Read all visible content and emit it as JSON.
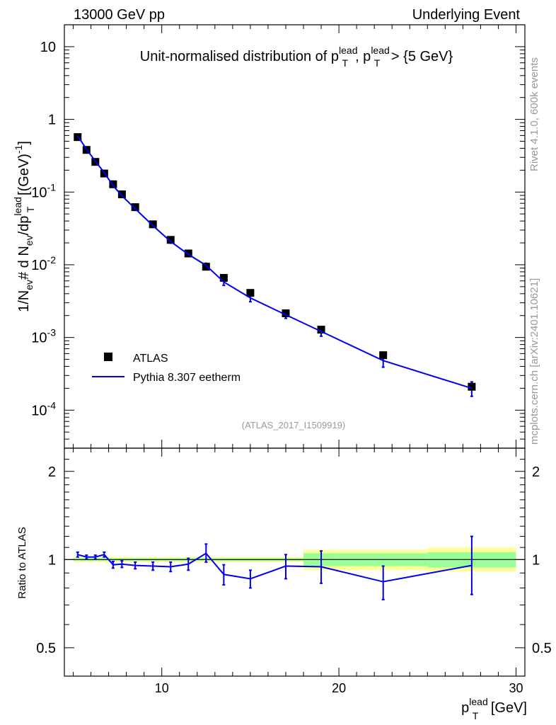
{
  "header": {
    "left": "13000 GeV pp",
    "right": "Underlying Event"
  },
  "side_labels": {
    "rivet": "Rivet 4.1.0,  600k events",
    "mcplots": "mcplots.cern.ch [arXiv:2401.10621]"
  },
  "analysis_id": "(ATLAS_2017_I1509919)",
  "colors": {
    "data": "#000000",
    "mc": "#0000ee",
    "band_inner": "#99ff99",
    "band_outer": "#ffff99",
    "axis": "#000000",
    "id_text": "#999999"
  },
  "chart_data": [
    {
      "type": "line",
      "panel": "main",
      "title": "Unit-normalised distribution of p_T^lead, p_T^lead > {5 GeV}",
      "ylabel": "1/N_ev # d N_ev/dp_T^lead [(GeV)^-1]",
      "xlabel": "p_T^lead [GeV]",
      "xlim": [
        4.5,
        30.5
      ],
      "ylim": [
        3e-05,
        20
      ],
      "yscale": "log",
      "yticks": [
        {
          "value": 0.0001,
          "mant": "10",
          "exp": "-4"
        },
        {
          "value": 0.001,
          "mant": "10",
          "exp": "-3"
        },
        {
          "value": 0.01,
          "mant": "10",
          "exp": "-2"
        },
        {
          "value": 0.1,
          "mant": "10",
          "exp": "-1"
        },
        {
          "value": 1,
          "mant": "1",
          "exp": ""
        },
        {
          "value": 10,
          "mant": "10",
          "exp": ""
        }
      ],
      "legend": [
        "ATLAS",
        "Pythia 8.307 eetherm"
      ],
      "legend_position": "bottom-left",
      "series": [
        {
          "name": "ATLAS",
          "x": [
            5.25,
            5.75,
            6.25,
            6.75,
            7.25,
            7.75,
            8.5,
            9.5,
            10.5,
            11.5,
            12.5,
            13.5,
            15.0,
            17.0,
            19.0,
            22.5,
            27.5
          ],
          "y": [
            0.57,
            0.38,
            0.26,
            0.18,
            0.128,
            0.093,
            0.062,
            0.036,
            0.022,
            0.0143,
            0.0094,
            0.0066,
            0.0041,
            0.00215,
            0.00128,
            0.00057,
            0.00021
          ]
        },
        {
          "name": "Pythia 8.307 eetherm",
          "x": [
            5.25,
            5.75,
            6.25,
            6.75,
            7.25,
            7.75,
            8.5,
            9.5,
            10.5,
            11.5,
            12.5,
            13.5,
            15.0,
            17.0,
            19.0,
            22.5,
            27.5
          ],
          "y": [
            0.59,
            0.39,
            0.265,
            0.186,
            0.122,
            0.089,
            0.059,
            0.0345,
            0.0209,
            0.0139,
            0.0098,
            0.0058,
            0.0035,
            0.00205,
            0.00121,
            0.00048,
            0.0002
          ],
          "err_lo": [
            0.56,
            0.37,
            0.255,
            0.178,
            0.118,
            0.085,
            0.056,
            0.033,
            0.0198,
            0.013,
            0.0091,
            0.0052,
            0.0031,
            0.00183,
            0.00104,
            0.00039,
            0.000155
          ],
          "err_hi": [
            0.62,
            0.41,
            0.275,
            0.194,
            0.126,
            0.093,
            0.062,
            0.036,
            0.022,
            0.0148,
            0.0105,
            0.0064,
            0.0039,
            0.00227,
            0.00138,
            0.00057,
            0.000245
          ]
        }
      ]
    },
    {
      "type": "line",
      "panel": "ratio",
      "ylabel": "Ratio to ATLAS",
      "xlabel": "p_T^lead [GeV]",
      "xlim": [
        4.5,
        30.5
      ],
      "ylim": [
        0.4,
        2.4
      ],
      "yscale": "log",
      "yticks": [
        0.5,
        1,
        2
      ],
      "bands": {
        "x_edges": [
          5.0,
          5.5,
          6.0,
          6.5,
          7.0,
          7.5,
          8.0,
          9.0,
          10.0,
          11.0,
          12.0,
          13.0,
          14.0,
          16.0,
          18.0,
          20.0,
          25.0,
          30.0
        ],
        "inner_lo": [
          0.99,
          0.99,
          0.99,
          0.99,
          0.99,
          0.99,
          0.99,
          0.99,
          0.99,
          0.99,
          0.99,
          0.99,
          0.99,
          0.99,
          0.95,
          0.95,
          0.94
        ],
        "inner_hi": [
          1.01,
          1.01,
          1.01,
          1.01,
          1.01,
          1.01,
          1.01,
          1.01,
          1.01,
          1.01,
          1.01,
          1.01,
          1.01,
          1.01,
          1.05,
          1.05,
          1.06
        ],
        "outer_lo": [
          0.98,
          0.98,
          0.98,
          0.98,
          0.98,
          0.98,
          0.98,
          0.98,
          0.98,
          0.98,
          0.98,
          0.98,
          0.98,
          0.98,
          0.92,
          0.92,
          0.91
        ],
        "outer_hi": [
          1.02,
          1.02,
          1.02,
          1.02,
          1.02,
          1.02,
          1.02,
          1.02,
          1.02,
          1.02,
          1.02,
          1.02,
          1.02,
          1.02,
          1.08,
          1.08,
          1.1
        ]
      },
      "series": [
        {
          "name": "Pythia 8.307 eetherm",
          "x": [
            5.25,
            5.75,
            6.25,
            6.75,
            7.25,
            7.75,
            8.5,
            9.5,
            10.5,
            11.5,
            12.5,
            13.5,
            15.0,
            17.0,
            19.0,
            22.5,
            27.5
          ],
          "y": [
            1.04,
            1.02,
            1.02,
            1.04,
            0.96,
            0.965,
            0.955,
            0.95,
            0.945,
            0.965,
            1.05,
            0.89,
            0.86,
            0.95,
            0.945,
            0.84,
            0.955
          ],
          "err_lo": [
            1.02,
            1.005,
            1.005,
            1.02,
            0.935,
            0.94,
            0.93,
            0.92,
            0.91,
            0.92,
            0.98,
            0.82,
            0.8,
            0.86,
            0.83,
            0.73,
            0.76
          ],
          "err_hi": [
            1.06,
            1.035,
            1.035,
            1.06,
            0.985,
            0.99,
            0.98,
            0.98,
            0.98,
            1.01,
            1.13,
            0.96,
            0.92,
            1.04,
            1.07,
            0.95,
            1.2
          ]
        }
      ]
    }
  ],
  "x_tick_labels": [
    "10",
    "20",
    "30"
  ],
  "xlabel_parts": {
    "base": "p",
    "sup": "lead",
    "sub": "T",
    "unit": "[GeV]"
  }
}
